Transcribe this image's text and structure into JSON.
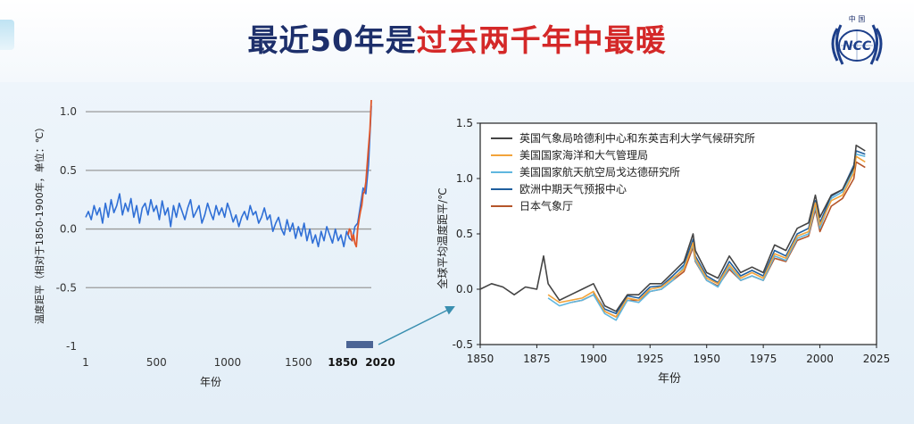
{
  "title": {
    "part1": "最近50年是",
    "part2": "过去两千年中最暖"
  },
  "logo": {
    "top_text": "中  国",
    "initials": "NCC"
  },
  "colors": {
    "title_dark": "#1d2f6b",
    "title_red": "#d42828",
    "left_line": "#2f6fd6",
    "left_recent": "#e0572a",
    "highlight_box": "#4b6495"
  },
  "chart_data": [
    {
      "type": "line",
      "title": "",
      "xlabel": "年份",
      "ylabel": "温度距平（相对于1850-1900年，单位：℃）",
      "xlim": [
        1,
        2020
      ],
      "ylim": [
        -1,
        1.1
      ],
      "xticks": [
        1,
        500,
        1000,
        1500,
        1850,
        2020
      ],
      "yticks": [
        1.0,
        0.5,
        0.0,
        -0.5,
        -1
      ],
      "ytick_labels": [
        "1.0",
        "0.5",
        "0.0",
        "-0.5",
        "-1"
      ],
      "grid": "horizontal",
      "highlight_range": [
        1850,
        2020
      ],
      "series": [
        {
          "color": "#2f6fd6",
          "x": [
            1,
            20,
            40,
            60,
            80,
            100,
            120,
            140,
            160,
            180,
            200,
            220,
            240,
            260,
            280,
            300,
            320,
            340,
            360,
            380,
            400,
            420,
            440,
            460,
            480,
            500,
            520,
            540,
            560,
            580,
            600,
            620,
            640,
            660,
            680,
            700,
            720,
            740,
            760,
            780,
            800,
            820,
            840,
            860,
            880,
            900,
            920,
            940,
            960,
            980,
            1000,
            1020,
            1040,
            1060,
            1080,
            1100,
            1120,
            1140,
            1160,
            1180,
            1200,
            1220,
            1240,
            1260,
            1280,
            1300,
            1320,
            1340,
            1360,
            1380,
            1400,
            1420,
            1440,
            1460,
            1480,
            1500,
            1520,
            1540,
            1560,
            1580,
            1600,
            1620,
            1640,
            1660,
            1680,
            1700,
            1720,
            1740,
            1760,
            1780,
            1800,
            1820,
            1840,
            1860,
            1880,
            1900,
            1920,
            1940,
            1960,
            1980,
            2000,
            2020
          ],
          "values": [
            0.1,
            0.15,
            0.08,
            0.2,
            0.12,
            0.18,
            0.05,
            0.22,
            0.1,
            0.25,
            0.14,
            0.2,
            0.3,
            0.12,
            0.22,
            0.15,
            0.26,
            0.1,
            0.2,
            0.05,
            0.18,
            0.22,
            0.12,
            0.25,
            0.15,
            0.2,
            0.08,
            0.24,
            0.12,
            0.18,
            0.02,
            0.2,
            0.1,
            0.22,
            0.15,
            0.08,
            0.18,
            0.25,
            0.1,
            0.15,
            0.2,
            0.05,
            0.12,
            0.22,
            0.14,
            0.08,
            0.2,
            0.12,
            0.18,
            0.1,
            0.22,
            0.15,
            0.06,
            0.12,
            0.02,
            0.1,
            0.15,
            0.08,
            0.2,
            0.12,
            0.15,
            0.05,
            0.1,
            0.18,
            0.08,
            0.12,
            -0.02,
            0.05,
            0.1,
            0.0,
            -0.05,
            0.08,
            -0.02,
            0.05,
            -0.08,
            0.02,
            -0.06,
            0.05,
            -0.1,
            0.0,
            -0.12,
            -0.05,
            -0.15,
            -0.02,
            -0.1,
            0.02,
            -0.05,
            -0.12,
            0.0,
            -0.1,
            -0.05,
            -0.15,
            -0.02,
            -0.08,
            -0.1,
            0.02,
            0.05,
            0.2,
            0.35,
            0.3,
            0.55,
            1.05
          ]
        },
        {
          "color": "#e0572a",
          "x": [
            1850,
            1860,
            1870,
            1880,
            1890,
            1900,
            1910,
            1920,
            1930,
            1940,
            1950,
            1960,
            1970,
            1980,
            1990,
            2000,
            2010,
            2020
          ],
          "values": [
            -0.05,
            0.0,
            -0.02,
            -0.1,
            -0.05,
            -0.12,
            -0.15,
            0.0,
            0.08,
            0.15,
            0.2,
            0.3,
            0.32,
            0.4,
            0.55,
            0.7,
            0.85,
            1.1
          ]
        }
      ]
    },
    {
      "type": "line",
      "title": "",
      "xlabel": "年份",
      "ylabel": "全球平均温度距平/℃",
      "xlim": [
        1850,
        2025
      ],
      "ylim": [
        -0.5,
        1.5
      ],
      "xticks": [
        1850,
        1875,
        1900,
        1925,
        1950,
        1975,
        2000,
        2025
      ],
      "yticks": [
        -0.5,
        0.0,
        0.5,
        1.0,
        1.5
      ],
      "ytick_labels": [
        "-0.5",
        "0.0",
        "0.5",
        "1.0",
        "1.5"
      ],
      "legend_position": "top-left",
      "series": [
        {
          "name": "英国气象局哈德利中心和东英吉利大学气候研究所",
          "color": "#444444",
          "x": [
            1850,
            1855,
            1860,
            1865,
            1870,
            1875,
            1878,
            1880,
            1885,
            1890,
            1895,
            1900,
            1905,
            1910,
            1915,
            1920,
            1925,
            1930,
            1935,
            1940,
            1944,
            1945,
            1950,
            1955,
            1960,
            1965,
            1970,
            1975,
            1980,
            1985,
            1990,
            1995,
            1998,
            2000,
            2005,
            2010,
            2015,
            2016,
            2020
          ],
          "values": [
            0.0,
            0.05,
            0.02,
            -0.05,
            0.02,
            0.0,
            0.3,
            0.05,
            -0.1,
            -0.05,
            0.0,
            0.05,
            -0.15,
            -0.2,
            -0.05,
            -0.05,
            0.05,
            0.05,
            0.15,
            0.25,
            0.5,
            0.35,
            0.15,
            0.1,
            0.3,
            0.15,
            0.2,
            0.15,
            0.4,
            0.35,
            0.55,
            0.6,
            0.85,
            0.65,
            0.85,
            0.9,
            1.1,
            1.3,
            1.25
          ]
        },
        {
          "name": "美国国家海洋和大气管理局",
          "color": "#f2a33a",
          "x": [
            1880,
            1885,
            1890,
            1895,
            1900,
            1905,
            1910,
            1915,
            1920,
            1925,
            1930,
            1935,
            1940,
            1944,
            1945,
            1950,
            1955,
            1960,
            1965,
            1970,
            1975,
            1980,
            1985,
            1990,
            1995,
            1998,
            2000,
            2005,
            2010,
            2015,
            2016,
            2020
          ],
          "values": [
            -0.05,
            -0.12,
            -0.1,
            -0.08,
            -0.02,
            -0.2,
            -0.25,
            -0.08,
            -0.1,
            0.0,
            0.02,
            0.1,
            0.18,
            0.42,
            0.28,
            0.1,
            0.05,
            0.22,
            0.1,
            0.15,
            0.1,
            0.32,
            0.28,
            0.48,
            0.52,
            0.78,
            0.58,
            0.8,
            0.85,
            1.05,
            1.2,
            1.15
          ]
        },
        {
          "name": "美国国家航天航空局戈达德研究所",
          "color": "#5fb6df",
          "x": [
            1880,
            1885,
            1890,
            1895,
            1900,
            1905,
            1910,
            1915,
            1920,
            1925,
            1930,
            1935,
            1940,
            1944,
            1945,
            1950,
            1955,
            1960,
            1965,
            1970,
            1975,
            1980,
            1985,
            1990,
            1995,
            1998,
            2000,
            2005,
            2010,
            2015,
            2016,
            2020
          ],
          "values": [
            -0.08,
            -0.15,
            -0.12,
            -0.1,
            -0.05,
            -0.22,
            -0.28,
            -0.1,
            -0.12,
            -0.02,
            0.0,
            0.08,
            0.2,
            0.4,
            0.26,
            0.08,
            0.02,
            0.2,
            0.08,
            0.12,
            0.08,
            0.3,
            0.26,
            0.46,
            0.5,
            0.75,
            0.55,
            0.82,
            0.88,
            1.08,
            1.22,
            1.2
          ]
        },
        {
          "name": "欧洲中期天气预报中心",
          "color": "#1f5f9e",
          "x": [
            1900,
            1905,
            1910,
            1915,
            1920,
            1925,
            1930,
            1935,
            1940,
            1944,
            1945,
            1950,
            1955,
            1960,
            1965,
            1970,
            1975,
            1980,
            1985,
            1990,
            1995,
            1998,
            2000,
            2005,
            2010,
            2015,
            2016,
            2020
          ],
          "values": [
            -0.03,
            -0.18,
            -0.22,
            -0.06,
            -0.08,
            0.02,
            0.03,
            0.12,
            0.22,
            0.45,
            0.3,
            0.12,
            0.06,
            0.25,
            0.12,
            0.17,
            0.12,
            0.35,
            0.3,
            0.5,
            0.55,
            0.8,
            0.6,
            0.84,
            0.9,
            1.12,
            1.25,
            1.22
          ]
        },
        {
          "name": "日本气象厅",
          "color": "#b5552a",
          "x": [
            1890,
            1895,
            1900,
            1905,
            1910,
            1915,
            1920,
            1925,
            1930,
            1935,
            1940,
            1944,
            1945,
            1950,
            1955,
            1960,
            1965,
            1970,
            1975,
            1980,
            1985,
            1990,
            1995,
            1998,
            2000,
            2005,
            2010,
            2015,
            2016,
            2020
          ],
          "values": [
            -0.12,
            -0.1,
            -0.05,
            -0.2,
            -0.25,
            -0.1,
            -0.1,
            -0.02,
            0.0,
            0.08,
            0.16,
            0.38,
            0.25,
            0.08,
            0.03,
            0.18,
            0.08,
            0.12,
            0.08,
            0.28,
            0.25,
            0.44,
            0.48,
            0.72,
            0.52,
            0.75,
            0.82,
            1.0,
            1.15,
            1.1
          ]
        }
      ]
    }
  ]
}
